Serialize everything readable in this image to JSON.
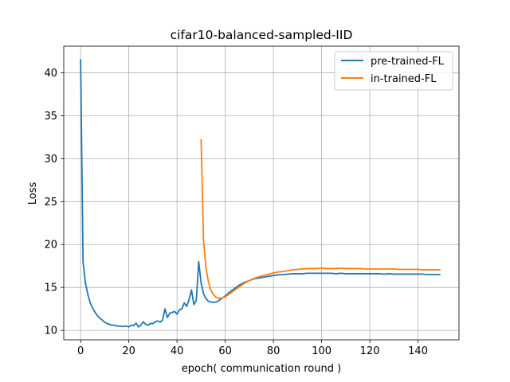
{
  "chart_data": {
    "type": "line",
    "title": "cifar10-balanced-sampled-IID",
    "xlabel": "epoch( communication round )",
    "ylabel": "Loss",
    "xlim": [
      -7,
      157
    ],
    "ylim": [
      8.9,
      43.1
    ],
    "xticks": [
      0,
      20,
      40,
      60,
      80,
      100,
      120,
      140
    ],
    "yticks": [
      10,
      15,
      20,
      25,
      30,
      35,
      40
    ],
    "grid": true,
    "legend_position": "top-right",
    "series": [
      {
        "name": "pre-trained-FL",
        "color": "#1f77b4",
        "x": [
          0,
          1,
          2,
          3,
          4,
          5,
          6,
          7,
          8,
          9,
          10,
          11,
          12,
          13,
          14,
          15,
          16,
          17,
          18,
          19,
          20,
          21,
          22,
          23,
          24,
          25,
          26,
          27,
          28,
          29,
          30,
          31,
          32,
          33,
          34,
          35,
          36,
          37,
          38,
          39,
          40,
          41,
          42,
          43,
          44,
          45,
          46,
          47,
          48,
          49,
          50,
          51,
          52,
          53,
          54,
          55,
          56,
          57,
          58,
          59,
          60,
          62,
          64,
          66,
          68,
          70,
          72,
          74,
          76,
          78,
          80,
          82,
          84,
          86,
          88,
          90,
          92,
          94,
          96,
          98,
          100,
          102,
          104,
          106,
          108,
          110,
          112,
          114,
          116,
          118,
          120,
          122,
          124,
          126,
          128,
          130,
          132,
          134,
          136,
          138,
          140,
          142,
          144,
          146,
          149
        ],
        "y": [
          41.5,
          18.0,
          15.5,
          14.2,
          13.2,
          12.6,
          12.1,
          11.7,
          11.4,
          11.2,
          10.95,
          10.8,
          10.7,
          10.6,
          10.6,
          10.5,
          10.5,
          10.45,
          10.45,
          10.5,
          10.4,
          10.6,
          10.55,
          10.85,
          10.4,
          10.6,
          11.0,
          10.7,
          10.6,
          10.8,
          10.8,
          11.0,
          11.1,
          10.95,
          11.2,
          12.5,
          11.5,
          12.0,
          12.1,
          12.2,
          11.9,
          12.4,
          12.5,
          13.2,
          12.8,
          13.6,
          14.7,
          13.0,
          13.5,
          18.0,
          15.5,
          14.3,
          13.7,
          13.4,
          13.3,
          13.25,
          13.3,
          13.4,
          13.6,
          13.8,
          14.0,
          14.5,
          14.9,
          15.3,
          15.6,
          15.8,
          16.0,
          16.1,
          16.2,
          16.3,
          16.4,
          16.45,
          16.5,
          16.55,
          16.6,
          16.6,
          16.6,
          16.65,
          16.65,
          16.65,
          16.65,
          16.65,
          16.65,
          16.6,
          16.65,
          16.6,
          16.6,
          16.6,
          16.6,
          16.6,
          16.6,
          16.6,
          16.6,
          16.55,
          16.6,
          16.55,
          16.55,
          16.55,
          16.55,
          16.55,
          16.55,
          16.55,
          16.5,
          16.5,
          16.5
        ]
      },
      {
        "name": "in-trained-FL",
        "color": "#ff7f0e",
        "x": [
          50,
          51,
          52,
          53,
          54,
          55,
          56,
          57,
          58,
          59,
          60,
          62,
          64,
          66,
          68,
          70,
          72,
          74,
          76,
          78,
          80,
          82,
          84,
          86,
          88,
          90,
          92,
          94,
          96,
          98,
          100,
          102,
          104,
          106,
          108,
          110,
          112,
          114,
          116,
          118,
          120,
          122,
          124,
          126,
          128,
          130,
          132,
          134,
          136,
          138,
          140,
          142,
          144,
          146,
          149
        ],
        "y": [
          32.2,
          20.5,
          17.3,
          15.7,
          14.7,
          14.2,
          13.9,
          13.75,
          13.75,
          13.8,
          13.9,
          14.3,
          14.7,
          15.1,
          15.5,
          15.8,
          16.05,
          16.25,
          16.4,
          16.55,
          16.7,
          16.8,
          16.85,
          16.95,
          17.05,
          17.1,
          17.15,
          17.2,
          17.2,
          17.2,
          17.25,
          17.2,
          17.2,
          17.2,
          17.25,
          17.2,
          17.2,
          17.2,
          17.2,
          17.15,
          17.15,
          17.15,
          17.15,
          17.15,
          17.15,
          17.15,
          17.1,
          17.1,
          17.1,
          17.1,
          17.1,
          17.05,
          17.05,
          17.05,
          17.05
        ]
      }
    ]
  }
}
